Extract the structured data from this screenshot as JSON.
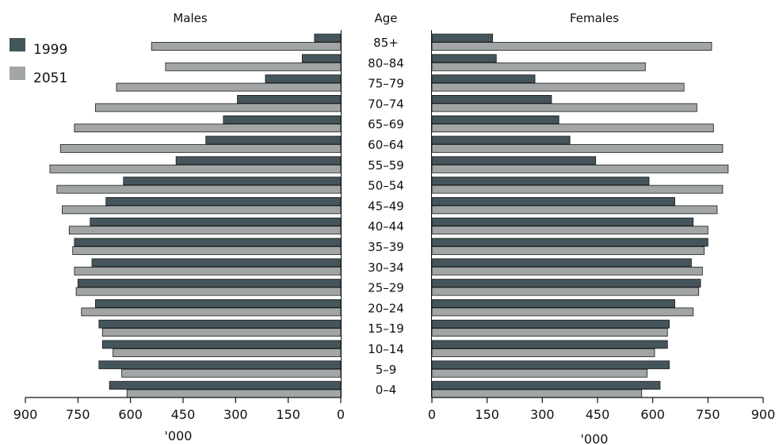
{
  "chart_data": {
    "type": "bar",
    "orientation": "horizontal",
    "layout": "population-pyramid",
    "center_label": "Age",
    "panel_titles": {
      "left": "Males",
      "right": "Females"
    },
    "categories": [
      "85+",
      "80–84",
      "75–79",
      "70–74",
      "65–69",
      "60–64",
      "55–59",
      "50–54",
      "45–49",
      "40–44",
      "35–39",
      "30–34",
      "25–29",
      "20–24",
      "15–19",
      "10–14",
      "5–9",
      "0–4"
    ],
    "series": [
      {
        "name": "1999",
        "color": "#44555b"
      },
      {
        "name": "2051",
        "color": "#a1a5a6"
      }
    ],
    "males": {
      "1999": [
        75,
        110,
        215,
        295,
        335,
        385,
        470,
        620,
        670,
        715,
        760,
        710,
        750,
        700,
        690,
        680,
        690,
        660
      ],
      "2051": [
        540,
        500,
        640,
        700,
        760,
        800,
        830,
        810,
        795,
        775,
        765,
        760,
        755,
        740,
        680,
        650,
        625,
        610
      ]
    },
    "females": {
      "1999": [
        165,
        175,
        280,
        325,
        345,
        375,
        445,
        590,
        660,
        710,
        750,
        705,
        730,
        660,
        645,
        640,
        645,
        620
      ],
      "2051": [
        760,
        580,
        685,
        720,
        765,
        790,
        805,
        790,
        775,
        750,
        740,
        735,
        725,
        710,
        640,
        605,
        585,
        570
      ]
    },
    "x_axis": {
      "left": {
        "ticks": [
          900,
          750,
          600,
          450,
          300,
          150,
          0
        ],
        "label": "'000",
        "lim": [
          0,
          900
        ],
        "reversed": true
      },
      "right": {
        "ticks": [
          0,
          150,
          300,
          450,
          600,
          750,
          900
        ],
        "label": "'000",
        "lim": [
          0,
          900
        ]
      }
    },
    "legend": {
      "position": "top-left",
      "entries": [
        "1999",
        "2051"
      ]
    },
    "grid": false
  }
}
